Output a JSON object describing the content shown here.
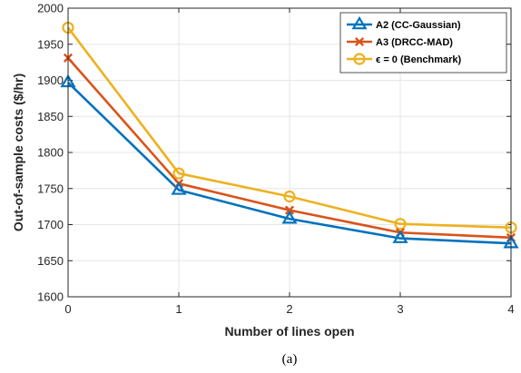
{
  "chart_data": {
    "type": "line",
    "xlabel": "Number of lines open",
    "ylabel": "Out-of-sample costs ($/hr)",
    "caption": "(a)",
    "x": [
      0,
      1,
      2,
      3,
      4
    ],
    "xlim": [
      0,
      4
    ],
    "ylim": [
      1600,
      2000
    ],
    "xticks": [
      "0",
      "1",
      "2",
      "3",
      "4"
    ],
    "yticks": [
      "1600",
      "1650",
      "1700",
      "1750",
      "1800",
      "1850",
      "1900",
      "1950",
      "2000"
    ],
    "grid": true,
    "legend_position": "top-right",
    "series": [
      {
        "name": "A2 (CC-Gaussian)",
        "values": [
          1897,
          1748,
          1708,
          1681,
          1674
        ],
        "color": "#0072BD",
        "marker": "triangle"
      },
      {
        "name": "A3 (DRCC-MAD)",
        "values": [
          1931,
          1757,
          1720,
          1689,
          1682
        ],
        "color": "#D95319",
        "marker": "x"
      },
      {
        "name": "ϵ = 0 (Benchmark)",
        "values": [
          1973,
          1771,
          1739,
          1701,
          1696
        ],
        "color": "#EDB120",
        "marker": "circle"
      }
    ]
  }
}
